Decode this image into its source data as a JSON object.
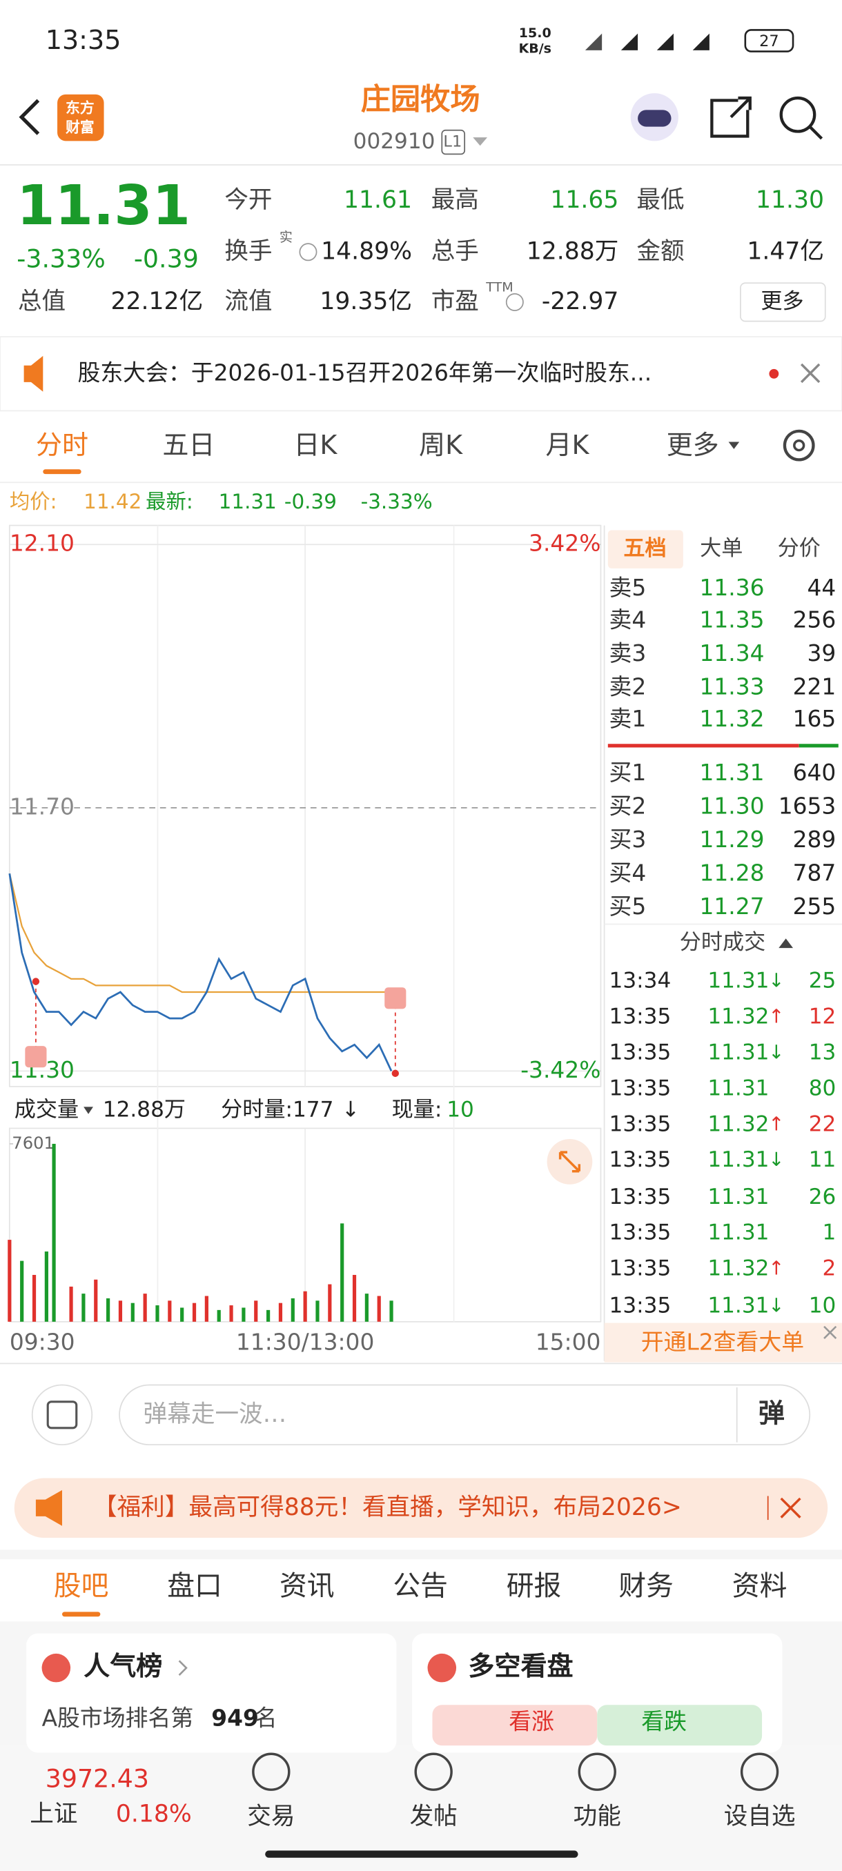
{
  "status_bar": {
    "time": "13:35",
    "speed_value": "15.0",
    "speed_unit": "KB/s",
    "battery": "27"
  },
  "header": {
    "logo": [
      "东方",
      "财富"
    ],
    "title": "庄园牧场",
    "code": "002910",
    "badge": "L1"
  },
  "quote": {
    "price": "11.31",
    "change_pct": "-3.33%",
    "change": "-0.39",
    "fields": [
      {
        "label": "今开",
        "value": "11.61",
        "color": "#1a9a2a"
      },
      {
        "label": "最高",
        "value": "11.65",
        "color": "#1a9a2a"
      },
      {
        "label": "最低",
        "value": "11.30",
        "color": "#1a9a2a"
      },
      {
        "label": "换手",
        "sup": "实",
        "value": "14.89%",
        "color": "#222222"
      },
      {
        "label": "总手",
        "value": "12.88万",
        "color": "#222222"
      },
      {
        "label": "金额",
        "value": "1.47亿",
        "color": "#222222"
      },
      {
        "label": "总值",
        "value": "22.12亿",
        "color": "#222222"
      },
      {
        "label": "流值",
        "value": "19.35亿",
        "color": "#222222"
      },
      {
        "label": "市盈",
        "sup": "TTM",
        "value": "-22.97",
        "color": "#222222"
      }
    ],
    "more": "更多"
  },
  "notice": "股东大会：于2026-01-15召开2026年第一次临时股东...",
  "chart_tabs": [
    "分时",
    "五日",
    "日K",
    "周K",
    "月K",
    "更多"
  ],
  "info_line": {
    "avg_label": "均价:",
    "avg": "11.42",
    "last_label": "最新:",
    "last": "11.31",
    "change": "-0.39",
    "change_pct": "-3.33%"
  },
  "intraday_chart": {
    "type": "line",
    "x": [
      0,
      5,
      10,
      15,
      20,
      25,
      30,
      35,
      40,
      45,
      50,
      55,
      60,
      65,
      70,
      75,
      80,
      85,
      90,
      95,
      100,
      105,
      110,
      115,
      120,
      125,
      130,
      135,
      140,
      145,
      150,
      155
    ],
    "xlim": [
      0,
      240
    ],
    "xticks": [
      {
        "value": 0,
        "label": "09:30"
      },
      {
        "value": 120,
        "label": "11:30/13:00"
      },
      {
        "value": 240,
        "label": "15:00"
      }
    ],
    "ylim": [
      11.3,
      12.1
    ],
    "yticks": [
      {
        "value": 12.1,
        "label": "12.10"
      },
      {
        "value": 11.7,
        "label": "11.70"
      },
      {
        "value": 11.3,
        "label": "11.30"
      }
    ],
    "y2lim": [
      -3.42,
      3.42
    ],
    "y2ticks": [
      {
        "value": 3.42,
        "label": "3.42%"
      },
      {
        "value": -3.42,
        "label": "-3.42%"
      }
    ],
    "series": [
      {
        "color": "#2c6db5",
        "values": [
          11.6,
          11.48,
          11.42,
          11.39,
          11.39,
          11.37,
          11.39,
          11.38,
          11.41,
          11.42,
          11.4,
          11.39,
          11.39,
          11.38,
          11.38,
          11.39,
          11.42,
          11.47,
          11.44,
          11.45,
          11.41,
          11.4,
          11.39,
          11.43,
          11.44,
          11.38,
          11.35,
          11.33,
          11.34,
          11.32,
          11.34,
          11.3
        ]
      },
      {
        "color": "#e8a23a",
        "values": [
          11.6,
          11.52,
          11.48,
          11.46,
          11.45,
          11.44,
          11.44,
          11.43,
          11.43,
          11.43,
          11.43,
          11.43,
          11.43,
          11.43,
          11.42,
          11.42,
          11.42,
          11.42,
          11.42,
          11.42,
          11.42,
          11.42,
          11.42,
          11.42,
          11.42,
          11.42,
          11.42,
          11.42,
          11.42,
          11.42,
          11.42,
          11.42
        ]
      }
    ]
  },
  "volume_bar": {
    "label": "成交量",
    "total": "12.88万",
    "minute": "分时量:177",
    "arrow": "↓",
    "now_label": "现量:",
    "now": "10"
  },
  "volume_chart": {
    "type": "bar",
    "x": [
      0,
      5,
      10,
      15,
      18,
      25,
      30,
      35,
      40,
      45,
      50,
      55,
      60,
      65,
      70,
      75,
      80,
      85,
      90,
      95,
      100,
      105,
      110,
      115,
      120,
      125,
      130,
      135,
      140,
      145,
      150,
      155
    ],
    "ylim": [
      0,
      7601
    ],
    "yticks": [
      7601
    ],
    "values": [
      3500,
      2600,
      2000,
      3000,
      7601,
      1500,
      1200,
      1800,
      1000,
      900,
      800,
      1200,
      700,
      900,
      600,
      800,
      1100,
      500,
      700,
      600,
      900,
      500,
      800,
      1000,
      1300,
      900,
      1600,
      4200,
      2000,
      1200,
      1100,
      900
    ],
    "colors": [
      "#e0312c",
      "#1a9a2a",
      "#e0312c",
      "#1a9a2a",
      "#1a9a2a",
      "#e0312c",
      "#1a9a2a",
      "#e0312c",
      "#1a9a2a",
      "#e0312c",
      "#1a9a2a",
      "#e0312c",
      "#1a9a2a",
      "#e0312c",
      "#1a9a2a",
      "#e0312c",
      "#e0312c",
      "#1a9a2a",
      "#e0312c",
      "#1a9a2a",
      "#e0312c",
      "#1a9a2a",
      "#e0312c",
      "#1a9a2a",
      "#e0312c",
      "#1a9a2a",
      "#e0312c",
      "#1a9a2a",
      "#e0312c",
      "#1a9a2a",
      "#e0312c",
      "#1a9a2a"
    ]
  },
  "order_book": {
    "tabs": [
      "五档",
      "大单",
      "分价"
    ],
    "sell": [
      {
        "label": "卖5",
        "price": "11.36",
        "qty": "44"
      },
      {
        "label": "卖4",
        "price": "11.35",
        "qty": "256"
      },
      {
        "label": "卖3",
        "price": "11.34",
        "qty": "39"
      },
      {
        "label": "卖2",
        "price": "11.33",
        "qty": "221"
      },
      {
        "label": "卖1",
        "price": "11.32",
        "qty": "165"
      }
    ],
    "buy": [
      {
        "label": "买1",
        "price": "11.31",
        "qty": "640"
      },
      {
        "label": "买2",
        "price": "11.30",
        "qty": "1653"
      },
      {
        "label": "买3",
        "price": "11.29",
        "qty": "289"
      },
      {
        "label": "买4",
        "price": "11.28",
        "qty": "787"
      },
      {
        "label": "买5",
        "price": "11.27",
        "qty": "255"
      }
    ]
  },
  "trades": {
    "title": "分时成交",
    "rows": [
      {
        "time": "13:34",
        "price": "11.31",
        "dir": "↓",
        "qty": "25"
      },
      {
        "time": "13:35",
        "price": "11.32",
        "dir": "↑",
        "qty": "12"
      },
      {
        "time": "13:35",
        "price": "11.31",
        "dir": "↓",
        "qty": "13"
      },
      {
        "time": "13:35",
        "price": "11.31",
        "qty": "80"
      },
      {
        "time": "13:35",
        "price": "11.32",
        "dir": "↑",
        "qty": "22"
      },
      {
        "time": "13:35",
        "price": "11.31",
        "dir": "↓",
        "qty": "11"
      },
      {
        "time": "13:35",
        "price": "11.31",
        "qty": "26"
      },
      {
        "time": "13:35",
        "price": "11.31",
        "qty": "1"
      },
      {
        "time": "13:35",
        "price": "11.32",
        "dir": "↑",
        "qty": "2"
      },
      {
        "time": "13:35",
        "price": "11.31",
        "dir": "↓",
        "qty": "10"
      }
    ],
    "l2_link": "开通L2查看大单"
  },
  "comment": {
    "placeholder": "弹幕走一波…",
    "button": "弹"
  },
  "banner": "【福利】最高可得88元！看直播，学知识，布局2026>",
  "section_tabs": [
    "股吧",
    "盘口",
    "资讯",
    "公告",
    "研报",
    "财务",
    "资料"
  ],
  "cards": {
    "popularity": {
      "title": "人气榜",
      "text": "A股市场排名第",
      "rank": "949",
      "suffix": "名"
    },
    "sentiment": {
      "title": "多空看盘",
      "up": "看涨",
      "down": "看跌"
    }
  },
  "bottom_nav": {
    "index_value": "3972.43",
    "index_name": "上证",
    "index_change": "0.18%",
    "items": [
      "交易",
      "发帖",
      "功能",
      "设自选"
    ]
  }
}
